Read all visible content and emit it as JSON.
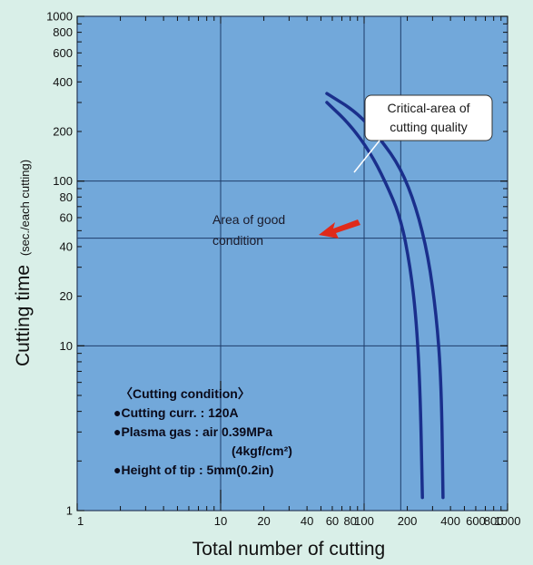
{
  "chart_data": {
    "type": "line",
    "title": "",
    "xlabel": "Total number of cutting",
    "ylabel_main": "Cutting time",
    "ylabel_unit": "(sec./each cutting)",
    "x_scale": "log",
    "y_scale": "log",
    "xlim": [
      1,
      1000
    ],
    "ylim": [
      1,
      1000
    ],
    "grid": true,
    "x_ticks": [
      {
        "value": 1,
        "label": "1"
      },
      {
        "value": 10,
        "label": "10"
      },
      {
        "value": 20,
        "label": "20"
      },
      {
        "value": 40,
        "label": "40"
      },
      {
        "value": 60,
        "label": "60"
      },
      {
        "value": 80,
        "label": "80"
      },
      {
        "value": 100,
        "label": "100"
      },
      {
        "value": 200,
        "label": "200"
      },
      {
        "value": 400,
        "label": "400"
      },
      {
        "value": 600,
        "label": "600"
      },
      {
        "value": 800,
        "label": "800"
      },
      {
        "value": 1000,
        "label": "1000"
      }
    ],
    "y_ticks": [
      {
        "value": 1,
        "label": "1"
      },
      {
        "value": 10,
        "label": "10"
      },
      {
        "value": 20,
        "label": "20"
      },
      {
        "value": 40,
        "label": "40"
      },
      {
        "value": 60,
        "label": "60"
      },
      {
        "value": 80,
        "label": "80"
      },
      {
        "value": 100,
        "label": "100"
      },
      {
        "value": 200,
        "label": "200"
      },
      {
        "value": 400,
        "label": "400"
      },
      {
        "value": 600,
        "label": "600"
      },
      {
        "value": 800,
        "label": "800"
      },
      {
        "value": 1000,
        "label": "1000"
      }
    ],
    "series": [
      {
        "points": [
          [
            55,
            300
          ],
          [
            80,
            220
          ],
          [
            110,
            150
          ],
          [
            140,
            100
          ],
          [
            180,
            60
          ],
          [
            210,
            30
          ],
          [
            230,
            15
          ],
          [
            245,
            6
          ],
          [
            255,
            1.2
          ]
        ]
      },
      {
        "points": [
          [
            55,
            340
          ],
          [
            90,
            260
          ],
          [
            130,
            180
          ],
          [
            180,
            120
          ],
          [
            230,
            70
          ],
          [
            280,
            35
          ],
          [
            320,
            15
          ],
          [
            345,
            6
          ],
          [
            355,
            1.2
          ]
        ]
      }
    ],
    "annotations": {
      "good_area": [
        "Area of good",
        "condition"
      ],
      "critical": [
        "Critical-area of",
        "cutting quality"
      ],
      "condition_title": "〈Cutting condition〉",
      "condition_lines": [
        "●Cutting curr. : 120A",
        "●Plasma gas : air 0.39MPa",
        "(4kgf/cm²)",
        "●Height of tip : 5mm(0.2in)"
      ]
    }
  },
  "colors": {
    "plot_background": "#72a8da",
    "gridline": "#1f3d6a",
    "curve": "#1a2f8c",
    "arrow": "#e02a1a",
    "page_background": "#d9efe8"
  }
}
